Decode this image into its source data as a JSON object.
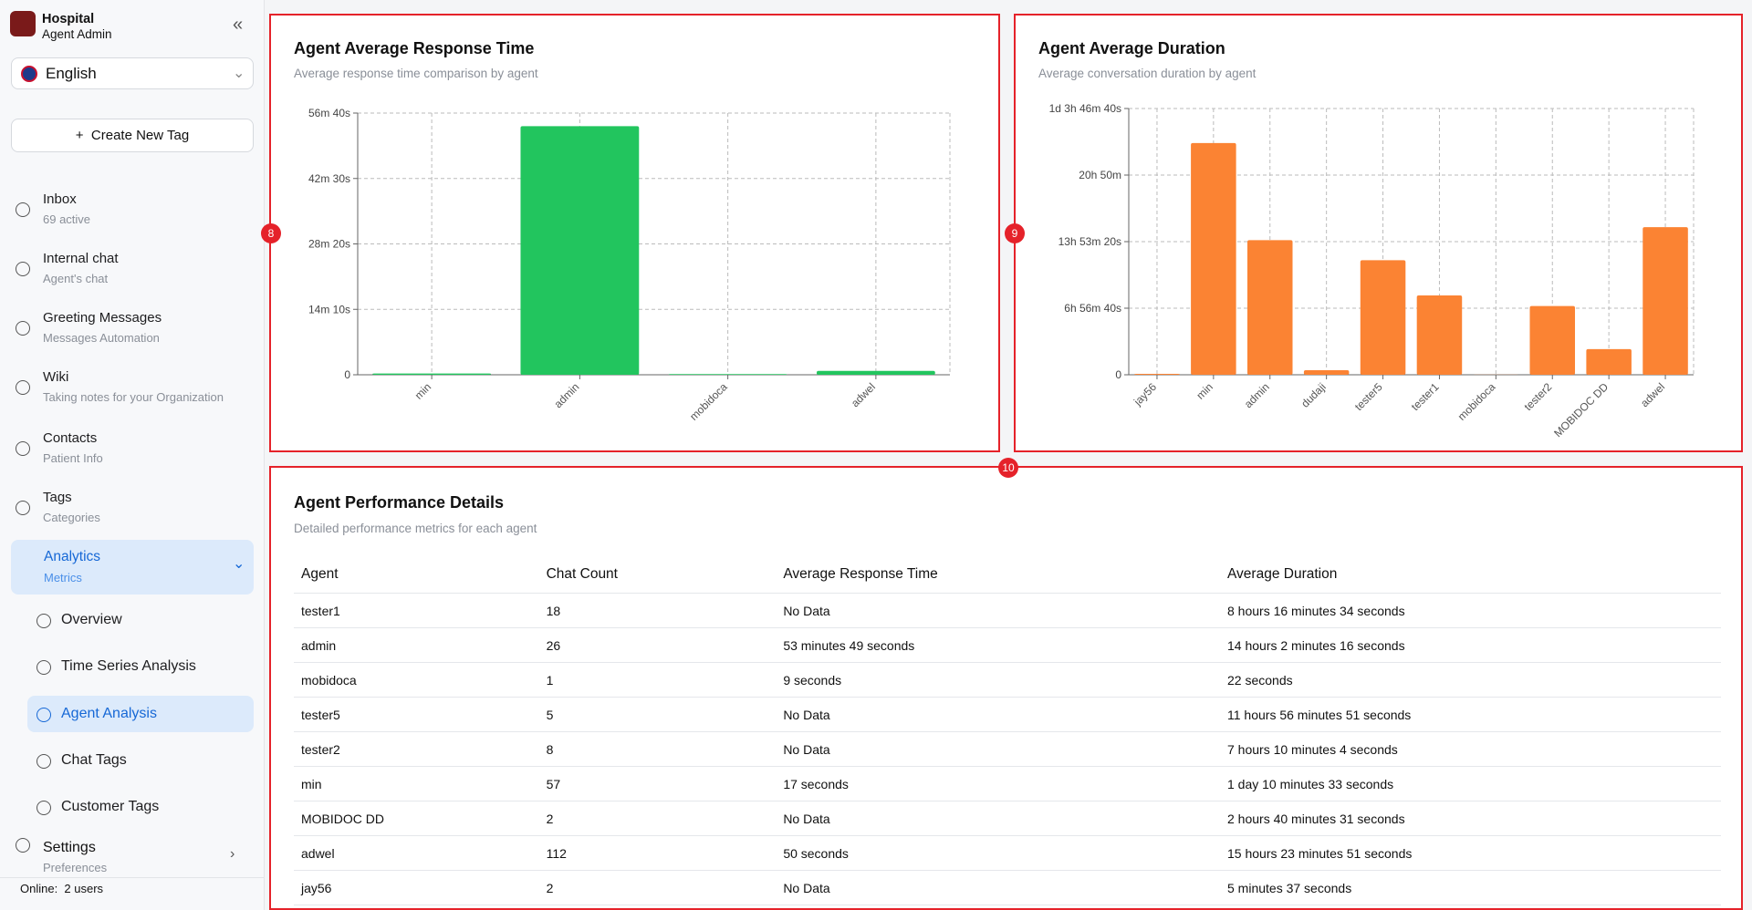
{
  "sidebar": {
    "org": "Hospital",
    "role": "Agent Admin",
    "language": "English",
    "create_button": "Create New Tag",
    "nav": [
      {
        "label": "Inbox",
        "sub": "69 active"
      },
      {
        "label": "Internal chat",
        "sub": "Agent's chat"
      },
      {
        "label": "Greeting Messages",
        "sub": "Messages Automation"
      },
      {
        "label": "Wiki",
        "sub": "Taking notes for your Organization"
      },
      {
        "label": "Contacts",
        "sub": "Patient Info"
      },
      {
        "label": "Tags",
        "sub": "Categories"
      }
    ],
    "analytics": {
      "label": "Analytics",
      "sub": "Metrics"
    },
    "subnav": [
      "Overview",
      "Time Series Analysis",
      "Agent Analysis",
      "Chat Tags",
      "Customer Tags"
    ],
    "settings": {
      "label": "Settings",
      "sub": "Preferences"
    },
    "online": "Online:  2 users"
  },
  "chart_data": [
    {
      "type": "bar",
      "title": "Agent Average Response Time",
      "subtitle": "Average response time comparison by agent",
      "categories": [
        "min",
        "admin",
        "mobidoca",
        "adwel"
      ],
      "values": [
        17,
        3229,
        9,
        50
      ],
      "color": "#22c55e",
      "ylim": [
        0,
        3400
      ],
      "yticks": [
        0,
        {
          "value": 850,
          "label": "14m 10s"
        },
        {
          "value": 1700,
          "label": "28m 20s"
        },
        {
          "value": 2550,
          "label": "42m 30s"
        },
        {
          "value": 3400,
          "label": "56m 40s"
        }
      ],
      "grid": true
    },
    {
      "type": "bar",
      "title": "Agent Average Duration",
      "subtitle": "Average conversation duration by agent",
      "categories": [
        "jay56",
        "min",
        "admin",
        "dudaji",
        "tester5",
        "tester1",
        "mobidoca",
        "tester2",
        "MOBIDOC DD",
        "adwel"
      ],
      "values": [
        337,
        87033,
        50536,
        1700,
        43011,
        29794,
        22,
        25804,
        9631,
        55431
      ],
      "color": "#fb8333",
      "ylim": [
        0,
        100000
      ],
      "yticks": [
        0,
        {
          "value": 25000,
          "label": "6h 56m 40s"
        },
        {
          "value": 50000,
          "label": "13h 53m 20s"
        },
        {
          "value": 75000,
          "label": "20h 50m"
        },
        {
          "value": 100000,
          "label": "1d 3h 46m 40s"
        }
      ],
      "grid": true
    }
  ],
  "table": {
    "title": "Agent Performance Details",
    "subtitle": "Detailed performance metrics for each agent",
    "columns": [
      "Agent",
      "Chat Count",
      "Average Response Time",
      "Average Duration"
    ],
    "rows": [
      [
        "tester1",
        "18",
        "No Data",
        "8 hours 16 minutes 34 seconds"
      ],
      [
        "admin",
        "26",
        "53 minutes 49 seconds",
        "14 hours 2 minutes 16 seconds"
      ],
      [
        "mobidoca",
        "1",
        "9 seconds",
        "22 seconds"
      ],
      [
        "tester5",
        "5",
        "No Data",
        "11 hours 56 minutes 51 seconds"
      ],
      [
        "tester2",
        "8",
        "No Data",
        "7 hours 10 minutes 4 seconds"
      ],
      [
        "min",
        "57",
        "17 seconds",
        "1 day 10 minutes 33 seconds"
      ],
      [
        "MOBIDOC DD",
        "2",
        "No Data",
        "2 hours 40 minutes 31 seconds"
      ],
      [
        "adwel",
        "112",
        "50 seconds",
        "15 hours 23 minutes 51 seconds"
      ],
      [
        "jay56",
        "2",
        "No Data",
        "5 minutes 37 seconds"
      ]
    ]
  },
  "annotations": [
    "8",
    "9",
    "10"
  ]
}
